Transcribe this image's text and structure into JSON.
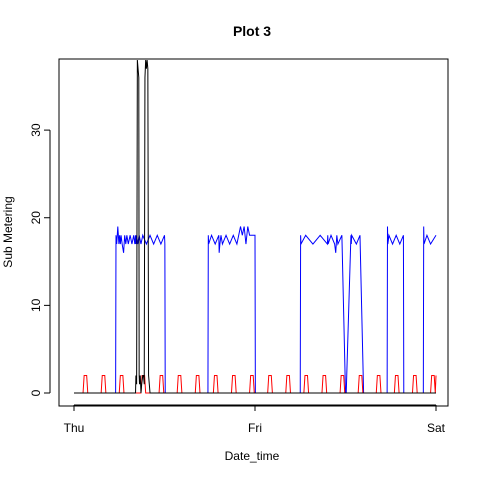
{
  "chart_data": {
    "type": "line",
    "title": "Plot 3",
    "xlabel": "Date_time",
    "ylabel": "Sub Metering",
    "xlim": [
      "Thu",
      "Sat"
    ],
    "ylim": [
      0,
      38
    ],
    "grid": false,
    "x_tick_labels": [
      "Thu",
      "Fri",
      "Sat"
    ],
    "y_ticks": [
      0,
      10,
      20,
      30
    ],
    "y_tick_labels": [
      "0",
      "10",
      "20",
      "30"
    ],
    "x_unit_note": "x positions are fractions of the Thu–Sat span (0 = Thu, 0.5 = Fri, 1 = Sat)",
    "series": [
      {
        "color": "#0000ff",
        "x": [
          0.0,
          0.115,
          0.116,
          0.118,
          0.121,
          0.124,
          0.126,
          0.128,
          0.13,
          0.133,
          0.137,
          0.14,
          0.143,
          0.146,
          0.15,
          0.155,
          0.16,
          0.165,
          0.168,
          0.17,
          0.171,
          0.173,
          0.176,
          0.18,
          0.185,
          0.19,
          0.2,
          0.21,
          0.22,
          0.23,
          0.24,
          0.25,
          0.251,
          0.252,
          0.253,
          0.37,
          0.371,
          0.372,
          0.38,
          0.39,
          0.4,
          0.401,
          0.403,
          0.406,
          0.41,
          0.42,
          0.43,
          0.44,
          0.45,
          0.455,
          0.46,
          0.465,
          0.47,
          0.475,
          0.48,
          0.485,
          0.49,
          0.5,
          0.501,
          0.502,
          0.503,
          0.625,
          0.626,
          0.627,
          0.64,
          0.66,
          0.68,
          0.7,
          0.701,
          0.702,
          0.71,
          0.72,
          0.723,
          0.726,
          0.729,
          0.74,
          0.75,
          0.751,
          0.752,
          0.765,
          0.766,
          0.767,
          0.78,
          0.79,
          0.8,
          0.801,
          0.802,
          0.865,
          0.866,
          0.867,
          0.87,
          0.88,
          0.89,
          0.9,
          0.91,
          0.911,
          0.912,
          0.965,
          0.966,
          0.967,
          0.975,
          0.985,
          1.0
        ],
        "y": [
          0,
          0,
          18,
          17,
          19,
          17,
          18,
          17,
          18,
          17,
          16,
          18,
          17,
          18,
          17,
          18,
          17,
          18,
          17,
          18,
          17,
          18,
          17,
          18,
          17,
          18,
          17,
          18,
          17,
          18,
          17,
          18,
          17,
          0,
          0,
          0,
          18,
          17,
          18,
          17,
          18,
          16,
          17,
          18,
          17,
          18,
          17,
          18,
          17,
          18,
          19,
          18,
          19,
          17,
          19,
          18,
          18,
          18,
          0,
          0,
          0,
          0,
          18,
          17,
          18,
          17,
          18,
          17,
          18,
          17,
          18,
          17,
          16,
          18,
          17,
          18,
          0,
          0,
          0,
          18,
          17,
          18,
          17,
          18,
          0,
          0,
          0,
          0,
          19,
          17,
          18,
          17,
          18,
          17,
          18,
          0,
          0,
          0,
          19,
          17,
          18,
          17,
          18
        ]
      },
      {
        "color": "#ff0000",
        "x": [
          0.0,
          0.025,
          0.028,
          0.035,
          0.038,
          0.075,
          0.078,
          0.085,
          0.088,
          0.125,
          0.128,
          0.135,
          0.138,
          0.185,
          0.188,
          0.195,
          0.198,
          0.235,
          0.238,
          0.245,
          0.248,
          0.285,
          0.288,
          0.295,
          0.298,
          0.335,
          0.338,
          0.345,
          0.348,
          0.385,
          0.388,
          0.395,
          0.398,
          0.435,
          0.438,
          0.445,
          0.448,
          0.485,
          0.488,
          0.495,
          0.498,
          0.535,
          0.538,
          0.545,
          0.548,
          0.585,
          0.588,
          0.595,
          0.598,
          0.635,
          0.638,
          0.645,
          0.648,
          0.685,
          0.688,
          0.695,
          0.698,
          0.735,
          0.738,
          0.745,
          0.748,
          0.785,
          0.788,
          0.795,
          0.798,
          0.835,
          0.838,
          0.845,
          0.848,
          0.885,
          0.888,
          0.895,
          0.898,
          0.935,
          0.938,
          0.945,
          0.948,
          0.985,
          0.988,
          0.995,
          0.998,
          1.0
        ],
        "y": [
          0,
          0,
          2,
          2,
          0,
          0,
          2,
          2,
          0,
          0,
          2,
          2,
          0,
          0,
          2,
          2,
          0,
          0,
          2,
          2,
          0,
          0,
          2,
          2,
          0,
          0,
          2,
          2,
          0,
          0,
          2,
          2,
          0,
          0,
          2,
          2,
          0,
          0,
          2,
          2,
          0,
          0,
          2,
          2,
          0,
          0,
          2,
          2,
          0,
          0,
          2,
          2,
          0,
          0,
          2,
          2,
          0,
          0,
          2,
          2,
          0,
          0,
          2,
          2,
          0,
          0,
          2,
          2,
          0,
          0,
          2,
          2,
          0,
          0,
          2,
          2,
          0,
          0,
          2,
          2,
          0,
          2
        ]
      },
      {
        "color": "#000000",
        "x": [
          0.0,
          0.17,
          0.171,
          0.173,
          0.175,
          0.177,
          0.179,
          0.18,
          0.181,
          0.183,
          0.185,
          0.187,
          0.19,
          0.192,
          0.194,
          0.196,
          0.198,
          0.2,
          0.202,
          0.204,
          0.206,
          0.208,
          0.21,
          1.0
        ],
        "y": [
          0,
          0,
          2,
          1,
          38,
          37,
          36,
          2,
          1,
          2,
          0,
          1,
          2,
          2,
          1,
          36,
          38,
          37,
          38,
          37,
          2,
          1,
          0,
          0
        ]
      }
    ]
  }
}
